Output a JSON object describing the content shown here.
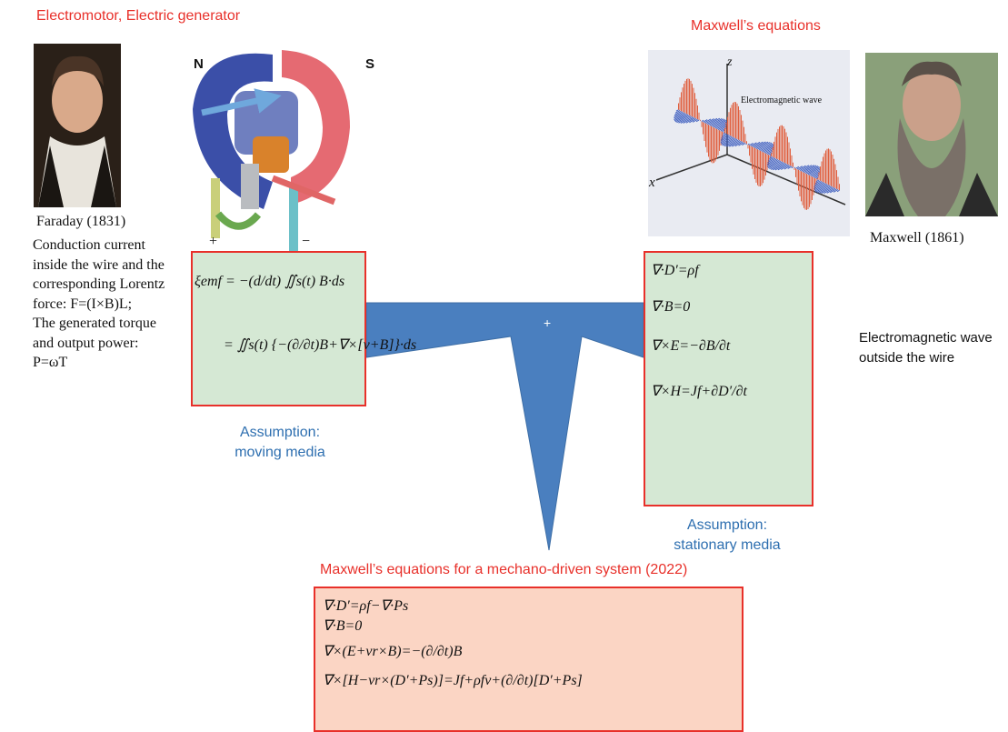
{
  "header": {
    "left_title": "Electromotor, Electric generator",
    "right_title": "Maxwell’s equations"
  },
  "motor": {
    "north": "N",
    "south": "S",
    "plus": "+",
    "minus": "−"
  },
  "faraday": {
    "caption": "Faraday (1831)",
    "description": [
      "Conduction current",
      "inside the wire and the",
      "corresponding Lorentz",
      "force: F=(I×B)L;",
      "The generated torque",
      "and output power:",
      "P=ωT"
    ]
  },
  "wave_figure": {
    "z": "z",
    "x": "x",
    "label": "Electromagnetic wave"
  },
  "maxwell": {
    "caption": "Maxwell (1861)",
    "note": [
      "Electromagnetic wave",
      "outside the wire"
    ]
  },
  "left_box": {
    "equations": [
      "ξemf = −(d/dt) ∬s(t) B·ds",
      "= ∬s(t) {−(∂/∂t)B+∇×[v+B]}·ds"
    ],
    "assumption": [
      "Assumption:",
      "moving media"
    ]
  },
  "right_box": {
    "equations": [
      "∇·D′=ρf",
      "∇·B=0",
      "∇×E=−∂B/∂t",
      "∇×H=Jf+∂D′/∂t"
    ],
    "assumption": [
      "Assumption:",
      "stationary media"
    ]
  },
  "junction": {
    "symbol": "+"
  },
  "bottom": {
    "title": "Maxwell’s equations for a mechano-driven system (2022)",
    "equations": [
      "∇·D′=ρf−∇·Ps",
      "∇·B=0",
      "∇×(E+vr×B)=−(∂/∂t)B",
      "∇×[H−vr×(D′+Ps)]=Jf+ρfv+(∂/∂t)[D′+Ps]"
    ]
  }
}
